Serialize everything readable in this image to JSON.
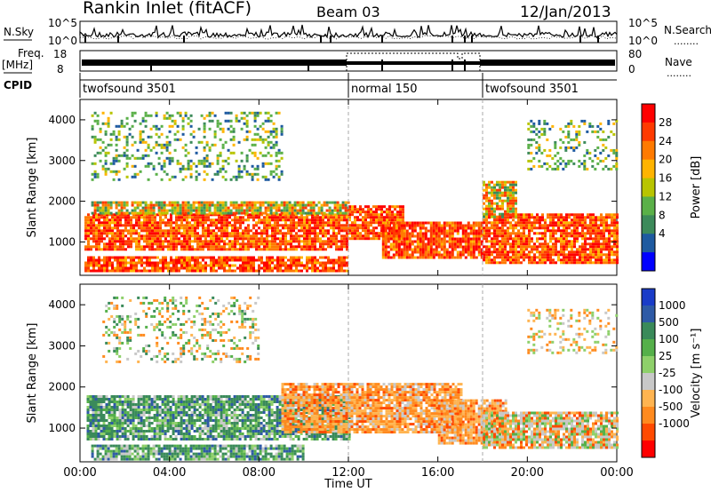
{
  "header": {
    "station": "Rankin Inlet (fitACF)",
    "beam": "Beam 03",
    "date": "12/Jan/2013"
  },
  "summary": {
    "nsky_label": "N.Sky",
    "nsearch_label": "N.Search",
    "freq_label_1": "Freq.",
    "freq_label_2": "[MHz]",
    "nave_label": "Nave",
    "cpid_label": "CPID",
    "noise_ticks": [
      "10^5",
      "10^0"
    ],
    "freq_ticks": [
      "18",
      "8"
    ],
    "nave_ticks": [
      "80",
      "0"
    ],
    "legend_dots": "........",
    "cpid_segments": [
      {
        "label": "twofsound 3501",
        "start": 0,
        "end": 12
      },
      {
        "label": "normal 150",
        "start": 12,
        "end": 18
      },
      {
        "label": "twofsound 3501",
        "start": 18,
        "end": 24
      }
    ]
  },
  "chart_data": [
    {
      "type": "heatmap",
      "name": "power",
      "xlabel": "Time UT",
      "ylabel": "Slant Range [km]",
      "xlim": [
        0,
        24
      ],
      "ylim": [
        180,
        4500
      ],
      "x_ticks": [
        "00:00",
        "04:00",
        "08:00",
        "12:00",
        "16:00",
        "20:00",
        "00:00"
      ],
      "y_ticks": [
        1000,
        2000,
        3000,
        4000
      ],
      "colorbar": {
        "label": "Power [dB]",
        "ticks": [
          "28",
          "24",
          "20",
          "16",
          "12",
          "8",
          "4"
        ],
        "colors": [
          "#ff0000",
          "#ff3a00",
          "#ff7a00",
          "#ffb400",
          "#b8c400",
          "#5ab048",
          "#3c8a5a",
          "#1e5aa0",
          "#0000ff"
        ]
      },
      "bands": [
        {
          "t0": 0.2,
          "t1": 12,
          "r0": 300,
          "r1": 650,
          "level": "high"
        },
        {
          "t0": 0.2,
          "t1": 12,
          "r0": 800,
          "r1": 1700,
          "level": "high"
        },
        {
          "t0": 0.5,
          "t1": 12,
          "r0": 1700,
          "r1": 2000,
          "level": "mid"
        },
        {
          "t0": 12,
          "t1": 14.5,
          "r0": 1100,
          "r1": 1900,
          "level": "high"
        },
        {
          "t0": 13.5,
          "t1": 18,
          "r0": 600,
          "r1": 1500,
          "level": "high"
        },
        {
          "t0": 18,
          "t1": 24,
          "r0": 500,
          "r1": 1700,
          "level": "high"
        },
        {
          "t0": 18,
          "t1": 19.5,
          "r0": 1600,
          "r1": 2500,
          "level": "mid"
        },
        {
          "t0": 0.5,
          "t1": 9,
          "r0": 2500,
          "r1": 4200,
          "level": "low"
        },
        {
          "t0": 20,
          "t1": 24,
          "r0": 2800,
          "r1": 4000,
          "level": "low"
        }
      ]
    },
    {
      "type": "heatmap",
      "name": "velocity",
      "xlabel": "Time UT",
      "ylabel": "Slant Range [km]",
      "xlim": [
        0,
        24
      ],
      "ylim": [
        180,
        4500
      ],
      "x_ticks": [
        "00:00",
        "04:00",
        "08:00",
        "12:00",
        "16:00",
        "20:00",
        "00:00"
      ],
      "y_ticks": [
        1000,
        2000,
        3000,
        4000
      ],
      "colorbar": {
        "label": "Velocity [m s⁻¹]",
        "ticks": [
          "1000",
          "500",
          "100",
          "25",
          "-25",
          "-100",
          "-500",
          "-1000"
        ],
        "colors": [
          "#1a3cc8",
          "#2e5aa6",
          "#3a8a5a",
          "#55b04a",
          "#8ed06a",
          "#c8c8c8",
          "#ffb450",
          "#ff8a1e",
          "#ff4a00",
          "#ff0000"
        ]
      },
      "bands": [
        {
          "t0": 0.3,
          "t1": 12,
          "r0": 700,
          "r1": 1800,
          "level": "pos"
        },
        {
          "t0": 0.5,
          "t1": 10,
          "r0": 250,
          "r1": 600,
          "level": "pos"
        },
        {
          "t0": 9,
          "t1": 17,
          "r0": 900,
          "r1": 2100,
          "level": "neg"
        },
        {
          "t0": 16,
          "t1": 19,
          "r0": 600,
          "r1": 1700,
          "level": "neg"
        },
        {
          "t0": 18,
          "t1": 24,
          "r0": 500,
          "r1": 1400,
          "level": "mixed"
        },
        {
          "t0": 1,
          "t1": 8,
          "r0": 2600,
          "r1": 4200,
          "level": "lowmix"
        },
        {
          "t0": 20,
          "t1": 24,
          "r0": 2800,
          "r1": 3900,
          "level": "lowneg"
        }
      ]
    }
  ]
}
